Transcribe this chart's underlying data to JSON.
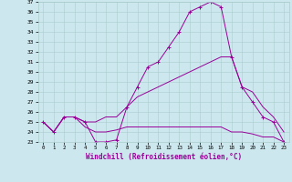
{
  "xlabel": "Windchill (Refroidissement éolien,°C)",
  "bg_color": "#cce8ee",
  "line_color": "#990099",
  "grid_color": "#aacccc",
  "xlim": [
    -0.5,
    23.5
  ],
  "ylim": [
    23,
    37
  ],
  "xticks": [
    0,
    1,
    2,
    3,
    4,
    5,
    6,
    7,
    8,
    9,
    10,
    11,
    12,
    13,
    14,
    15,
    16,
    17,
    18,
    19,
    20,
    21,
    22,
    23
  ],
  "yticks": [
    23,
    24,
    25,
    26,
    27,
    28,
    29,
    30,
    31,
    32,
    33,
    34,
    35,
    36,
    37
  ],
  "curve1_x": [
    0,
    1,
    2,
    3,
    4,
    5,
    6,
    7,
    8,
    9,
    10,
    11,
    12,
    13,
    14,
    15,
    16,
    17,
    18,
    19,
    20,
    21,
    22,
    23
  ],
  "curve1_y": [
    25.0,
    24.0,
    25.5,
    25.5,
    25.0,
    23.0,
    23.0,
    23.2,
    26.5,
    28.5,
    30.5,
    31.0,
    32.5,
    34.0,
    36.0,
    36.5,
    37.0,
    36.5,
    31.5,
    28.5,
    27.0,
    25.5,
    25.0,
    23.0
  ],
  "curve2_x": [
    0,
    1,
    2,
    3,
    4,
    5,
    6,
    7,
    8,
    9,
    10,
    11,
    12,
    13,
    14,
    15,
    16,
    17,
    18,
    19,
    20,
    21,
    22,
    23
  ],
  "curve2_y": [
    25.0,
    24.0,
    25.5,
    25.5,
    24.5,
    24.0,
    24.0,
    24.2,
    24.5,
    24.5,
    24.5,
    24.5,
    24.5,
    24.5,
    24.5,
    24.5,
    24.5,
    24.5,
    24.0,
    24.0,
    23.8,
    23.5,
    23.5,
    23.0
  ],
  "curve3_x": [
    0,
    1,
    2,
    3,
    4,
    5,
    6,
    7,
    8,
    9,
    10,
    11,
    12,
    13,
    14,
    15,
    16,
    17,
    18,
    19,
    20,
    21,
    22,
    23
  ],
  "curve3_y": [
    25.0,
    24.0,
    25.5,
    25.5,
    25.0,
    25.0,
    25.5,
    25.5,
    26.5,
    27.5,
    28.0,
    28.5,
    29.0,
    29.5,
    30.0,
    30.5,
    31.0,
    31.5,
    31.5,
    28.5,
    28.0,
    26.5,
    25.5,
    24.0
  ]
}
